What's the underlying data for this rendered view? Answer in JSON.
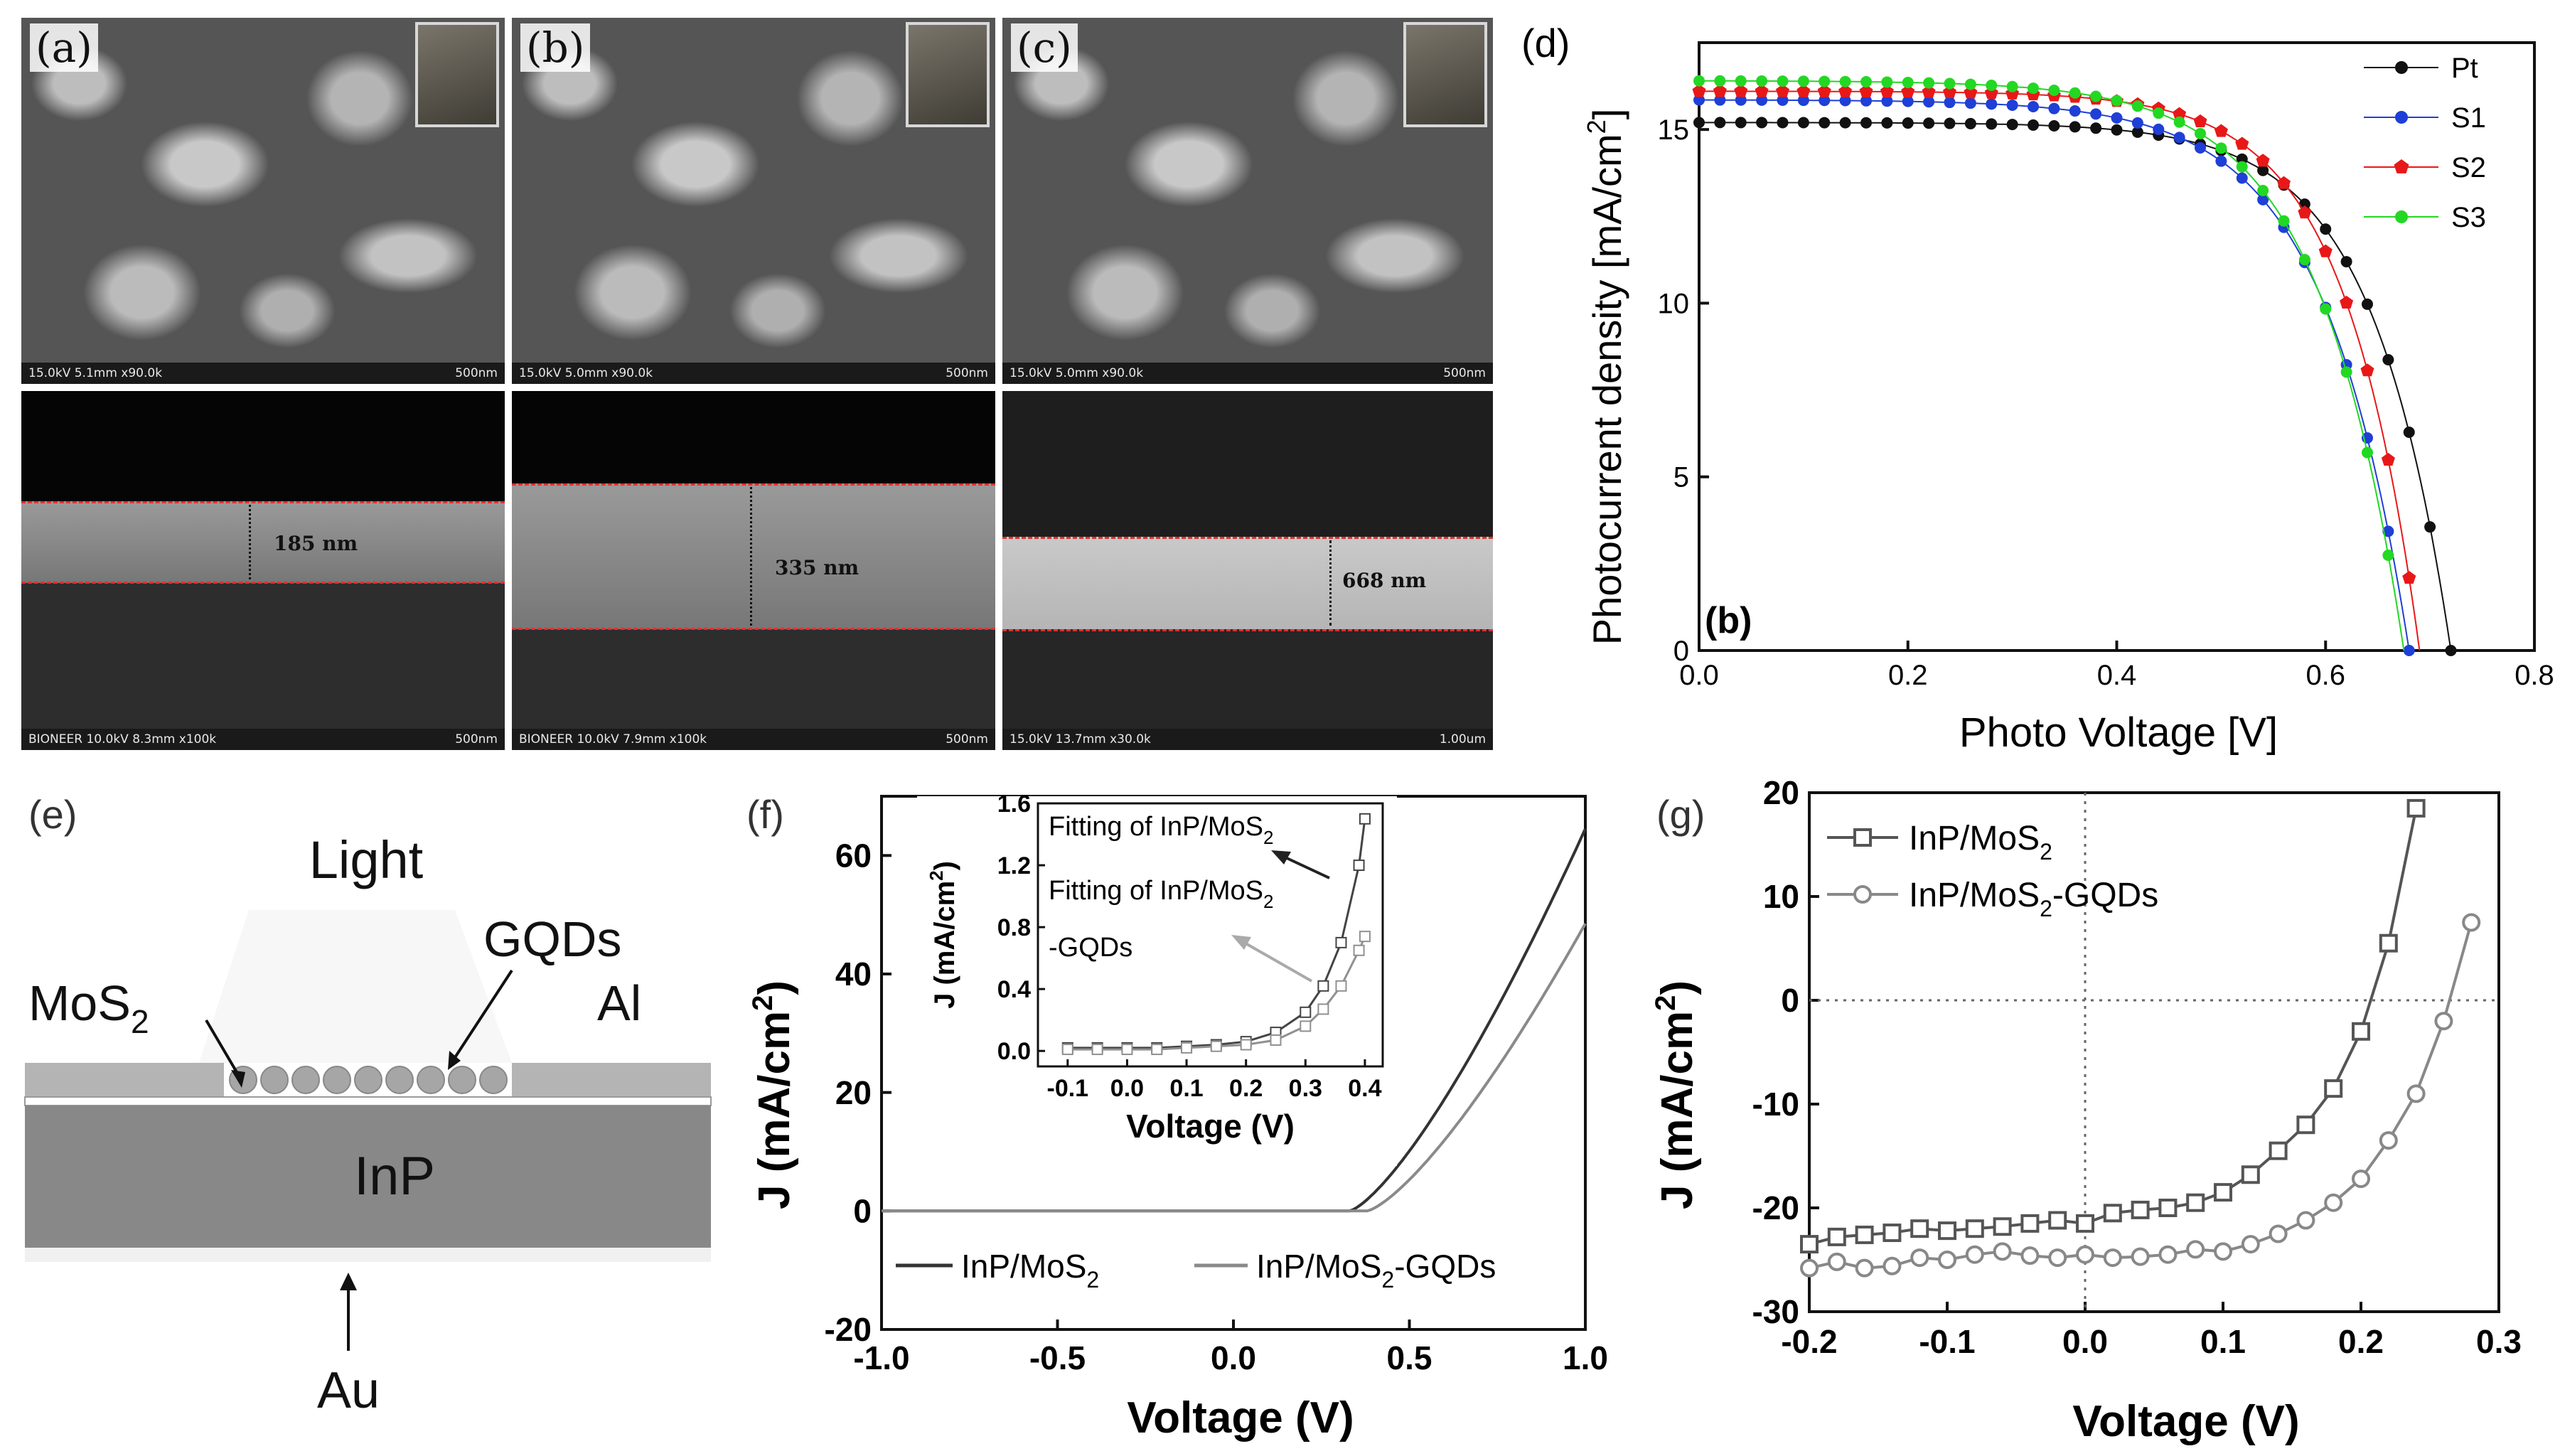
{
  "sem_panels": [
    {
      "label": "(a)",
      "top_bar": [
        "15.0kV 5.1mm x90.0k",
        "500nm"
      ],
      "bottom_bar": [
        "BIONEER 10.0kV 8.3mm x100k",
        "500nm"
      ],
      "thickness": "185 nm"
    },
    {
      "label": "(b)",
      "top_bar": [
        "15.0kV 5.0mm x90.0k",
        "500nm"
      ],
      "bottom_bar": [
        "BIONEER 10.0kV 7.9mm x100k",
        "500nm"
      ],
      "thickness": "335 nm"
    },
    {
      "label": "(c)",
      "top_bar": [
        "15.0kV 5.0mm x90.0k",
        "500nm"
      ],
      "bottom_bar": [
        "15.0kV 13.7mm x30.0k",
        "1.00um"
      ],
      "thickness": "668 nm"
    }
  ],
  "schematic": {
    "label": "(e)",
    "light": "Light",
    "mos2": "MoS",
    "mos2_sub": "2",
    "gqds": "GQDs",
    "al": "Al",
    "inp": "InP",
    "au": "Au",
    "colors": {
      "layer": "#b4b4b4",
      "substrate": "#888888",
      "dot": "#a6a6a6"
    }
  },
  "chart_data": [
    {
      "id": "d",
      "label": "(d)",
      "type": "line",
      "xlabel": "Photo Voltage [V]",
      "ylabel": "Photocurrent density [mA/cm",
      "ylabel_sup": "2",
      "ylabel_end": "]",
      "xlim": [
        0,
        0.8
      ],
      "ylim": [
        0,
        17.5
      ],
      "xticks": [
        "0.0",
        "0.2",
        "0.4",
        "0.6",
        "0.8"
      ],
      "xtick_values": [
        0,
        0.2,
        0.4,
        0.6,
        0.8
      ],
      "yticks": [
        "0",
        "5",
        "10",
        "15"
      ],
      "ytick_values": [
        0,
        5,
        10,
        15
      ],
      "inner_label": "(b)",
      "series": [
        {
          "name": "Pt",
          "color": "#111111",
          "marker": "circle",
          "jsc": 15.2,
          "voc": 0.72,
          "knee": 0.075
        },
        {
          "name": "S1",
          "color": "#1f3fd6",
          "marker": "circle",
          "jsc": 15.85,
          "voc": 0.68,
          "knee": 0.082
        },
        {
          "name": "S2",
          "color": "#e81818",
          "marker": "pentagon",
          "jsc": 16.1,
          "voc": 0.69,
          "knee": 0.072
        },
        {
          "name": "S3",
          "color": "#22d822",
          "marker": "circle",
          "jsc": 16.4,
          "voc": 0.675,
          "knee": 0.082
        }
      ]
    },
    {
      "id": "f",
      "label": "(f)",
      "type": "line",
      "xlabel": "Voltage (V)",
      "ylabel": "J (mA/cm",
      "ylabel_sup": "2",
      "ylabel_end": ")",
      "xlim": [
        -1.0,
        1.0
      ],
      "ylim": [
        -20,
        70
      ],
      "xticks": [
        "-1.0",
        "-0.5",
        "0.0",
        "0.5",
        "1.0"
      ],
      "xtick_values": [
        -1.0,
        -0.5,
        0.0,
        0.5,
        1.0
      ],
      "yticks": [
        "-20",
        "0",
        "20",
        "40",
        "60"
      ],
      "ytick_values": [
        -20,
        0,
        20,
        40,
        60
      ],
      "series": [
        {
          "name": "InP/MoS",
          "sub": "2",
          "color": "#333333",
          "onset": 0.33,
          "jmax": 64.5
        },
        {
          "name": "InP/MoS",
          "sub": "2",
          "suffix": "-GQDs",
          "color": "#8a8a8a",
          "onset": 0.38,
          "jmax": 48.5
        }
      ],
      "inset": {
        "xlabel": "Voltage (V)",
        "ylabel": "J (mA/cm",
        "ylabel_sup": "2",
        "ylabel_end": ")",
        "xlim": [
          -0.15,
          0.43
        ],
        "ylim": [
          -0.1,
          1.6
        ],
        "xticks": [
          "-0.1",
          "0.0",
          "0.1",
          "0.2",
          "0.3",
          "0.4"
        ],
        "xtick_values": [
          -0.1,
          0.0,
          0.1,
          0.2,
          0.3,
          0.4
        ],
        "yticks": [
          "0.0",
          "0.4",
          "0.8",
          "1.2",
          "1.6"
        ],
        "ytick_values": [
          0.0,
          0.4,
          0.8,
          1.2,
          1.6
        ],
        "annot1": "Fitting of InP/MoS",
        "annot1_sub": "2",
        "annot2": "Fitting of InP/MoS",
        "annot2_sub": "2",
        "annot3": "-GQDs",
        "series": [
          {
            "color": "#444444",
            "x": [
              -0.1,
              -0.05,
              0.0,
              0.05,
              0.1,
              0.15,
              0.2,
              0.25,
              0.3,
              0.33,
              0.36,
              0.39,
              0.4
            ],
            "y": [
              0.02,
              0.02,
              0.02,
              0.02,
              0.03,
              0.04,
              0.06,
              0.12,
              0.25,
              0.42,
              0.7,
              1.2,
              1.5
            ]
          },
          {
            "color": "#909090",
            "x": [
              -0.1,
              -0.05,
              0.0,
              0.05,
              0.1,
              0.15,
              0.2,
              0.25,
              0.3,
              0.33,
              0.36,
              0.39,
              0.4
            ],
            "y": [
              0.01,
              0.01,
              0.01,
              0.01,
              0.02,
              0.03,
              0.04,
              0.07,
              0.16,
              0.27,
              0.42,
              0.65,
              0.74
            ]
          }
        ]
      }
    },
    {
      "id": "g",
      "label": "(g)",
      "type": "line",
      "xlabel": "Voltage (V)",
      "ylabel": "J (mA/cm",
      "ylabel_sup": "2",
      "ylabel_end": ")",
      "xlim": [
        -0.2,
        0.3
      ],
      "ylim": [
        -30,
        20
      ],
      "xticks": [
        "-0.2",
        "-0.1",
        "0.0",
        "0.1",
        "0.2",
        "0.3"
      ],
      "xtick_values": [
        -0.2,
        -0.1,
        0.0,
        0.1,
        0.2,
        0.3
      ],
      "yticks": [
        "-30",
        "-20",
        "-10",
        "0",
        "10",
        "20"
      ],
      "ytick_values": [
        -30,
        -20,
        -10,
        0,
        10,
        20
      ],
      "series": [
        {
          "name": "InP/MoS",
          "sub": "2",
          "suffix": "",
          "marker": "square",
          "color": "#555555",
          "x": [
            -0.2,
            -0.18,
            -0.16,
            -0.14,
            -0.12,
            -0.1,
            -0.08,
            -0.06,
            -0.04,
            -0.02,
            0.0,
            0.02,
            0.04,
            0.06,
            0.08,
            0.1,
            0.12,
            0.14,
            0.16,
            0.18,
            0.2,
            0.22,
            0.24
          ],
          "y": [
            -23.5,
            -22.8,
            -22.6,
            -22.4,
            -22.0,
            -22.2,
            -22.0,
            -21.8,
            -21.5,
            -21.2,
            -21.5,
            -20.5,
            -20.2,
            -20.0,
            -19.5,
            -18.5,
            -16.8,
            -14.5,
            -12,
            -8.5,
            -3,
            5.5,
            18.5
          ]
        },
        {
          "name": "InP/MoS",
          "sub": "2",
          "suffix": "-GQDs",
          "marker": "circle",
          "color": "#888888",
          "x": [
            -0.2,
            -0.18,
            -0.16,
            -0.14,
            -0.12,
            -0.1,
            -0.08,
            -0.06,
            -0.04,
            -0.02,
            0.0,
            0.02,
            0.04,
            0.06,
            0.08,
            0.1,
            0.12,
            0.14,
            0.16,
            0.18,
            0.2,
            0.22,
            0.24,
            0.26,
            0.28
          ],
          "y": [
            -25.8,
            -25.2,
            -25.8,
            -25.6,
            -24.8,
            -25.0,
            -24.5,
            -24.2,
            -24.6,
            -24.8,
            -24.5,
            -24.8,
            -24.7,
            -24.5,
            -24.0,
            -24.2,
            -23.5,
            -22.5,
            -21.2,
            -19.5,
            -17.2,
            -13.5,
            -9,
            -2,
            7.5
          ]
        }
      ]
    }
  ]
}
